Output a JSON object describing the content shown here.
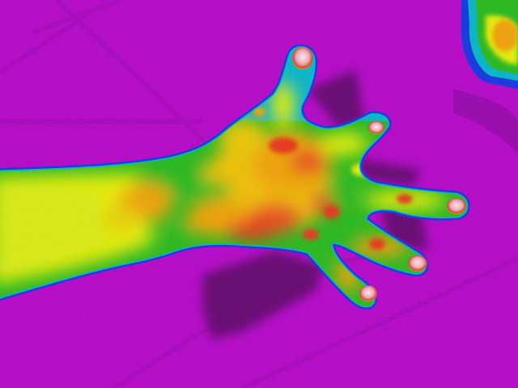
{
  "image": {
    "subject": "hand-thermal-scan",
    "palette": {
      "background": "#b400c8",
      "background_dark": "#7a0090",
      "shadow": "#5a0066",
      "cool": "#00b4c8",
      "cool_edge": "#1030e0",
      "mid": "#22b818",
      "warm": "#e6ee00",
      "hot": "#f0a000",
      "hotter": "#e83018",
      "nail": "#f0b0b8",
      "nail_core": "#ffe0e8"
    }
  }
}
